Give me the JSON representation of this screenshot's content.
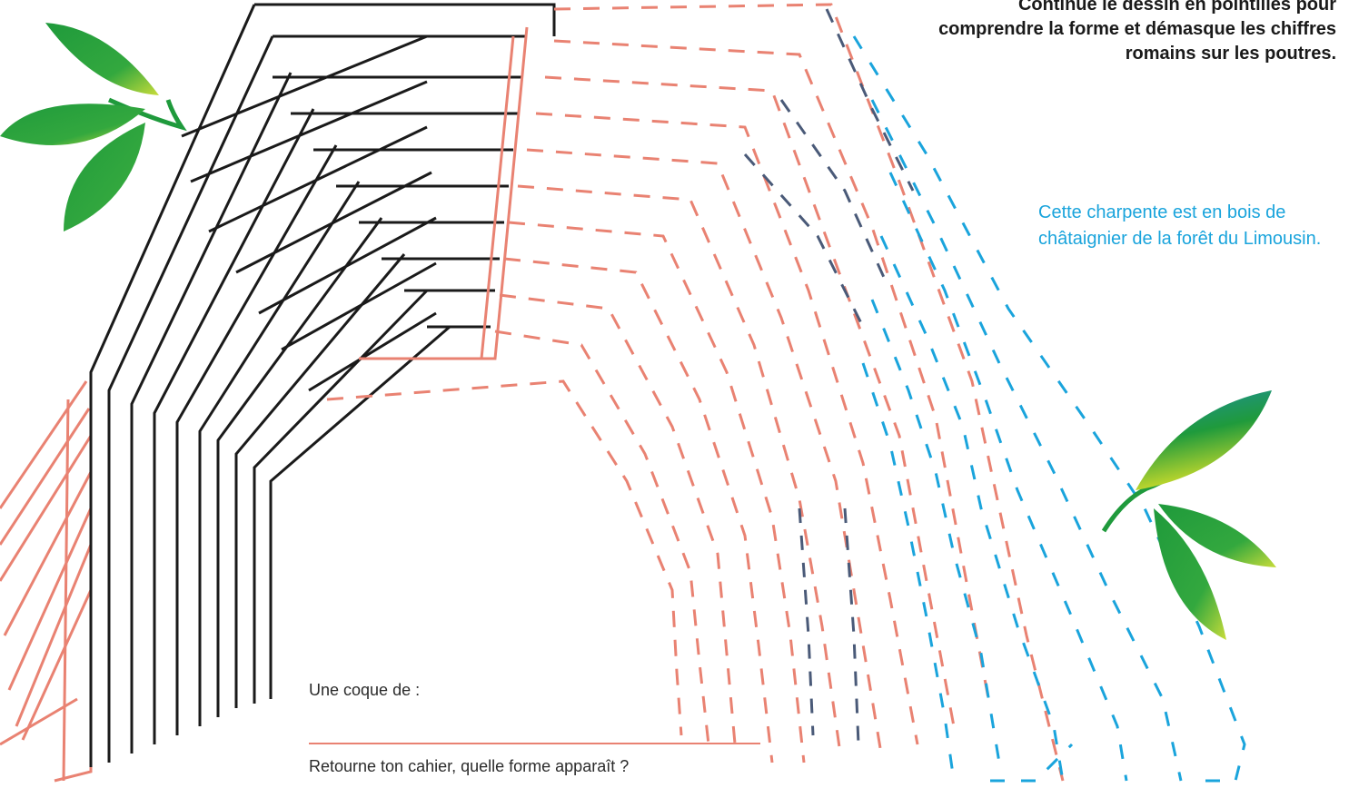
{
  "instruction": "Continue le dessin en pointillés pour comprendre la forme et démasque les chiffres romains sur les poutres.",
  "note": "Cette charpente est en bois de châtaignier de la forêt du Limousin.",
  "answer_label": "Une coque de :",
  "question": "Retourne ton cahier, quelle forme apparaît ?",
  "colors": {
    "salmon": "#e98272",
    "blue": "#1aa4dc",
    "slate": "#4a5a78",
    "ink": "#1a1a1a",
    "leaf_green": "#1f9a3c",
    "leaf_yellow": "#c8dc3a"
  }
}
